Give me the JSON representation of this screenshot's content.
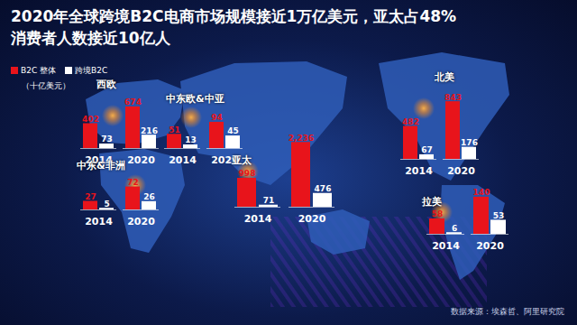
{
  "title": "2020年全球跨境B2C电商市场规模接近1万亿美元，亚太占48%",
  "subtitle": "消费者人数接近10亿人",
  "unit_label": "（十亿美元）",
  "source": "数据来源：埃森哲、阿里研究院",
  "chart_data": [
    {
      "type": "bar",
      "title": "西欧",
      "categories": [
        "2014",
        "2020"
      ],
      "series": [
        {
          "name": "B2C 整体",
          "color": "#e8141b",
          "values": [
            402,
            674
          ]
        },
        {
          "name": "跨境B2C",
          "color": "#ffffff",
          "values": [
            73,
            216
          ]
        }
      ],
      "ylim": [
        0,
        760
      ],
      "data_labels": true,
      "tick_labels": "x"
    },
    {
      "type": "bar",
      "title": "中东欧&中亚",
      "categories": [
        "2014",
        "2020"
      ],
      "series": [
        {
          "name": "B2C 整体",
          "color": "#e8141b",
          "values": [
            51,
            94
          ]
        },
        {
          "name": "跨境B2C",
          "color": "#ffffff",
          "values": [
            13,
            45
          ]
        }
      ],
      "ylim": [
        0,
        110
      ],
      "data_labels": true,
      "tick_labels": "x"
    },
    {
      "type": "bar",
      "title": "中东&非洲",
      "categories": [
        "2014",
        "2020"
      ],
      "series": [
        {
          "name": "B2C 整体",
          "color": "#e8141b",
          "values": [
            27,
            72
          ]
        },
        {
          "name": "跨境B2C",
          "color": "#ffffff",
          "values": [
            5,
            26
          ]
        }
      ],
      "ylim": [
        0,
        85
      ],
      "data_labels": true,
      "tick_labels": "x"
    },
    {
      "type": "bar",
      "title": "亚太",
      "categories": [
        "2014",
        "2020"
      ],
      "series": [
        {
          "name": "B2C 整体",
          "color": "#e8141b",
          "values": [
            998,
            2236
          ]
        },
        {
          "name": "跨境B2C",
          "color": "#ffffff",
          "values": [
            71,
            476
          ]
        }
      ],
      "ylim": [
        0,
        2400
      ],
      "data_labels": true,
      "tick_labels": "x"
    },
    {
      "type": "bar",
      "title": "北美",
      "categories": [
        "2014",
        "2020"
      ],
      "series": [
        {
          "name": "B2C 整体",
          "color": "#e8141b",
          "values": [
            482,
            843
          ]
        },
        {
          "name": "跨境B2C",
          "color": "#ffffff",
          "values": [
            67,
            176
          ]
        }
      ],
      "ylim": [
        0,
        950
      ],
      "data_labels": true,
      "tick_labels": "x"
    },
    {
      "type": "bar",
      "title": "拉美",
      "categories": [
        "2014",
        "2020"
      ],
      "series": [
        {
          "name": "B2C 整体",
          "color": "#e8141b",
          "values": [
            58,
            140
          ]
        },
        {
          "name": "跨境B2C",
          "color": "#ffffff",
          "values": [
            6,
            53
          ]
        }
      ],
      "ylim": [
        0,
        160
      ],
      "data_labels": true,
      "tick_labels": "x"
    }
  ]
}
